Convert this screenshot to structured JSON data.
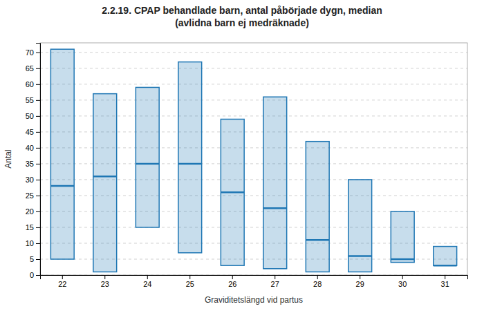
{
  "chart_data": {
    "type": "box",
    "title": "2.2.19. CPAP behandlade barn, antal påbörjade dygn, median\n(avlidna barn ej medräknade)",
    "xlabel": "Graviditetslängd vid partus",
    "ylabel": "Antal",
    "categories": [
      "22",
      "23",
      "24",
      "25",
      "26",
      "27",
      "28",
      "29",
      "30",
      "31"
    ],
    "bottom": [
      5,
      1,
      15,
      7,
      3,
      2,
      1,
      1,
      4,
      3
    ],
    "median": [
      28,
      31,
      35,
      35,
      26,
      21,
      11,
      6,
      5,
      3
    ],
    "top": [
      71,
      57,
      59,
      67,
      49,
      56,
      42,
      30,
      20,
      9
    ],
    "ylim": [
      0,
      73
    ],
    "yticks": [
      0,
      5,
      10,
      15,
      20,
      25,
      30,
      35,
      40,
      45,
      50,
      55,
      60,
      65,
      70
    ],
    "grid": true
  }
}
